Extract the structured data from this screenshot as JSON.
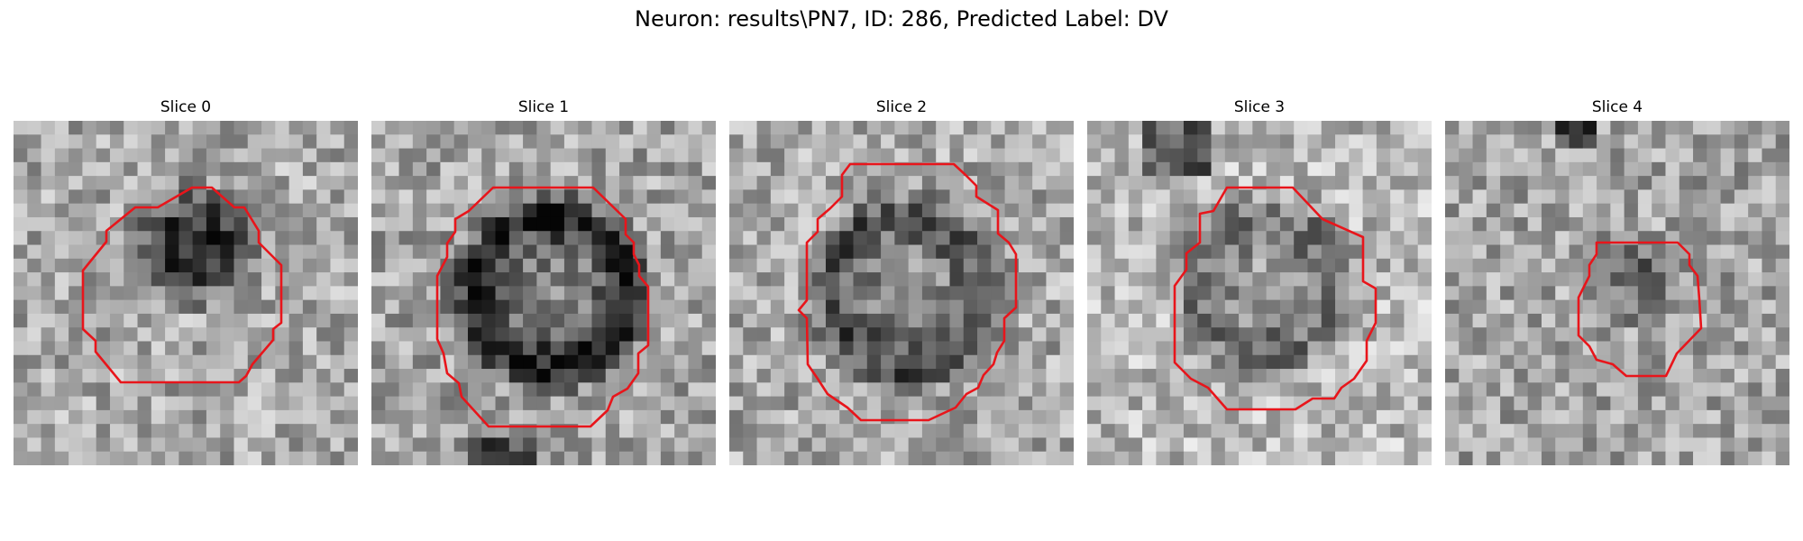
{
  "figure": {
    "title": "Neuron: results\\PN7, ID: 286, Predicted Label: DV"
  },
  "panels": [
    {
      "title": "Slice 0",
      "overlay_color": "#e8151b",
      "texture": "grayscale-noise-dark-blob"
    },
    {
      "title": "Slice 1",
      "overlay_color": "#e8151b",
      "texture": "grayscale-noise-dark-ring"
    },
    {
      "title": "Slice 2",
      "overlay_color": "#e8151b",
      "texture": "grayscale-noise-dark-ring"
    },
    {
      "title": "Slice 3",
      "overlay_color": "#e8151b",
      "texture": "grayscale-noise-faint-ring"
    },
    {
      "title": "Slice 4",
      "overlay_color": "#e8151b",
      "texture": "grayscale-noise-small-blob"
    }
  ]
}
